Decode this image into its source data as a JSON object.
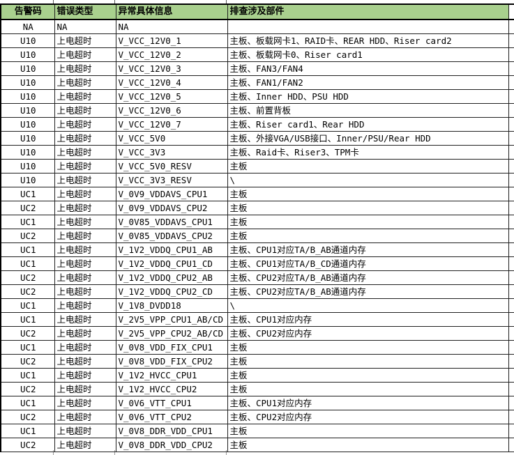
{
  "colors": {
    "header_bg": "#a9d08e",
    "border": "#1f1f1f",
    "text": "#000000"
  },
  "table": {
    "columns": [
      {
        "label": "告警码"
      },
      {
        "label": "错误类型"
      },
      {
        "label": "异常具体信息"
      },
      {
        "label": "排查涉及部件"
      }
    ],
    "rows": [
      [
        "NA",
        "NA",
        "NA",
        ""
      ],
      [
        "U10",
        "上电超时",
        "V_VCC_12V0_1",
        "主板、板载网卡1、RAID卡、REAR HDD、Riser card2"
      ],
      [
        "U10",
        "上电超时",
        "V_VCC_12V0_2",
        "主板、板载网卡0、Riser card1"
      ],
      [
        "U10",
        "上电超时",
        "V_VCC_12V0_3",
        "主板、FAN3/FAN4"
      ],
      [
        "U10",
        "上电超时",
        "V_VCC_12V0_4",
        "主板、FAN1/FAN2"
      ],
      [
        "U10",
        "上电超时",
        "V_VCC_12V0_5",
        "主板、Inner HDD、PSU HDD"
      ],
      [
        "U10",
        "上电超时",
        "V_VCC_12V0_6",
        "主板、前置背板"
      ],
      [
        "U10",
        "上电超时",
        "V_VCC_12V0_7",
        "主板、Riser card1、Rear HDD"
      ],
      [
        "U10",
        "上电超时",
        "V_VCC_5V0",
        "主板、外接VGA/USB接口、Inner/PSU/Rear HDD"
      ],
      [
        "U10",
        "上电超时",
        "V_VCC_3V3",
        "主板、Raid卡、Riser3、TPM卡"
      ],
      [
        "U10",
        "上电超时",
        "V_VCC_5V0_RESV",
        "主板"
      ],
      [
        "U10",
        "上电超时",
        "V_VCC_3V3_RESV",
        "\\"
      ],
      [
        "UC1",
        "上电超时",
        "V_0V9_VDDAVS_CPU1",
        "主板"
      ],
      [
        "UC2",
        "上电超时",
        "V_0V9_VDDAVS_CPU2",
        "主板"
      ],
      [
        "UC1",
        "上电超时",
        "V_0V85_VDDAVS_CPU1",
        "主板"
      ],
      [
        "UC2",
        "上电超时",
        "V_0V85_VDDAVS_CPU2",
        "主板"
      ],
      [
        "UC1",
        "上电超时",
        "V_1V2_VDDQ_CPU1_AB",
        "主板、CPU1对应TA/B_AB通道内存"
      ],
      [
        "UC1",
        "上电超时",
        "V_1V2_VDDQ_CPU1_CD",
        "主板、CPU1对应TA/B_CD通道内存"
      ],
      [
        "UC2",
        "上电超时",
        "V_1V2_VDDQ_CPU2_AB",
        "主板、CPU2对应TA/B_AB通道内存"
      ],
      [
        "UC2",
        "上电超时",
        "V_1V2_VDDQ_CPU2_CD",
        "主板、CPU2对应TA/B_AB通道内存"
      ],
      [
        "UC1",
        "上电超时",
        "V_1V8_DVDD18",
        "\\"
      ],
      [
        "UC1",
        "上电超时",
        "V_2V5_VPP_CPU1_AB/CD",
        "主板、CPU1对应内存"
      ],
      [
        "UC2",
        "上电超时",
        "V_2V5_VPP_CPU2_AB/CD",
        "主板、CPU2对应内存"
      ],
      [
        "UC1",
        "上电超时",
        "V_0V8_VDD_FIX_CPU1",
        "主板"
      ],
      [
        "UC2",
        "上电超时",
        "V_0V8_VDD_FIX_CPU2",
        "主板"
      ],
      [
        "UC1",
        "上电超时",
        "V_1V2_HVCC_CPU1",
        "主板"
      ],
      [
        "UC2",
        "上电超时",
        "V_1V2_HVCC_CPU2",
        "主板"
      ],
      [
        "UC1",
        "上电超时",
        "V_0V6_VTT_CPU1",
        "主板、CPU1对应内存"
      ],
      [
        "UC2",
        "上电超时",
        "V_0V6_VTT_CPU2",
        "主板、CPU2对应内存"
      ],
      [
        "UC1",
        "上电超时",
        "V_0V8_DDR_VDD_CPU1",
        "主板"
      ],
      [
        "UC2",
        "上电超时",
        "V_0V8_DDR_VDD_CPU2",
        "主板"
      ]
    ]
  }
}
